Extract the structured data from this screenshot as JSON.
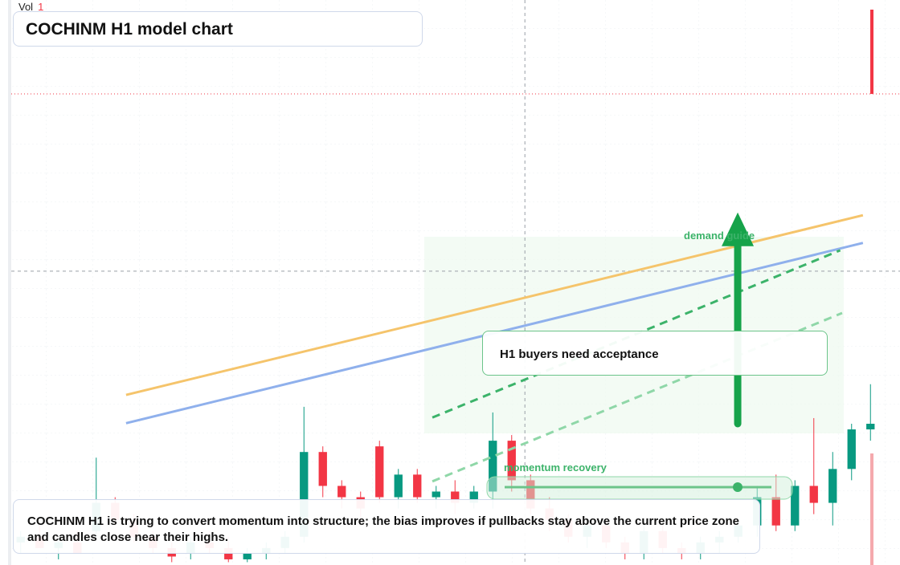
{
  "chart_data": {
    "type": "candlestick",
    "title": "COCHINM H1 model chart",
    "volume_label": "Vol",
    "volume_value": 1,
    "caption": "COCHINM H1 is trying to convert momentum into structure; the bias improves if pullbacks stay above the current price zone and candles close near their highs.",
    "annotation": "H1 buyers need acceptance",
    "up_color": "#089981",
    "down_color": "#f23645",
    "xlim": [
      -0.5,
      45.5
    ],
    "ylim": [
      0,
      100
    ],
    "candles": [
      {
        "o": 4,
        "h": 6,
        "l": 2,
        "c": 5
      },
      {
        "o": 5,
        "h": 7,
        "l": 3,
        "c": 3
      },
      {
        "o": 3,
        "h": 5,
        "l": 1,
        "c": 4
      },
      {
        "o": 4,
        "h": 6,
        "l": 2,
        "c": 2
      },
      {
        "o": 6,
        "h": 19,
        "l": 5,
        "c": 11
      },
      {
        "o": 11,
        "h": 12,
        "l": 7,
        "c": 8
      },
      {
        "o": 8,
        "h": 9,
        "l": 4,
        "c": 5
      },
      {
        "o": 5,
        "h": 6,
        "l": 2,
        "c": 3
      },
      {
        "o": 3,
        "h": 4,
        "l": 0.5,
        "c": 1.5
      },
      {
        "o": 2,
        "h": 5,
        "l": 1,
        "c": 4
      },
      {
        "o": 4,
        "h": 6,
        "l": 2,
        "c": 3
      },
      {
        "o": 3,
        "h": 5,
        "l": 0.5,
        "c": 1
      },
      {
        "o": 1,
        "h": 3,
        "l": 0.5,
        "c": 2
      },
      {
        "o": 2,
        "h": 4,
        "l": 1,
        "c": 3
      },
      {
        "o": 3,
        "h": 6,
        "l": 2,
        "c": 5
      },
      {
        "o": 5,
        "h": 28,
        "l": 4,
        "c": 20
      },
      {
        "o": 20,
        "h": 21,
        "l": 12,
        "c": 14
      },
      {
        "o": 14,
        "h": 15,
        "l": 10,
        "c": 12
      },
      {
        "o": 12,
        "h": 13,
        "l": 8,
        "c": 10
      },
      {
        "o": 21,
        "h": 22,
        "l": 11,
        "c": 12
      },
      {
        "o": 12,
        "h": 17,
        "l": 10,
        "c": 16
      },
      {
        "o": 16,
        "h": 17,
        "l": 11,
        "c": 12
      },
      {
        "o": 12,
        "h": 14,
        "l": 10,
        "c": 13
      },
      {
        "o": 13,
        "h": 15,
        "l": 9,
        "c": 11
      },
      {
        "o": 11,
        "h": 14,
        "l": 10,
        "c": 13
      },
      {
        "o": 13,
        "h": 27,
        "l": 10,
        "c": 22
      },
      {
        "o": 22,
        "h": 23,
        "l": 13,
        "c": 15
      },
      {
        "o": 15,
        "h": 16,
        "l": 9,
        "c": 10
      },
      {
        "o": 10,
        "h": 12,
        "l": 6,
        "c": 8
      },
      {
        "o": 8,
        "h": 9,
        "l": 4,
        "c": 5
      },
      {
        "o": 5,
        "h": 8,
        "l": 3,
        "c": 7
      },
      {
        "o": 7,
        "h": 8,
        "l": 3,
        "c": 4
      },
      {
        "o": 4,
        "h": 5,
        "l": 1,
        "c": 2
      },
      {
        "o": 2,
        "h": 7,
        "l": 1,
        "c": 6
      },
      {
        "o": 6,
        "h": 7,
        "l": 2,
        "c": 3
      },
      {
        "o": 3,
        "h": 4,
        "l": 1,
        "c": 2
      },
      {
        "o": 2,
        "h": 5,
        "l": 1,
        "c": 4
      },
      {
        "o": 4,
        "h": 6,
        "l": 2,
        "c": 5
      },
      {
        "o": 5,
        "h": 8,
        "l": 4,
        "c": 7
      },
      {
        "o": 7,
        "h": 14,
        "l": 5,
        "c": 12
      },
      {
        "o": 12,
        "h": 16,
        "l": 6,
        "c": 7
      },
      {
        "o": 7,
        "h": 15,
        "l": 6,
        "c": 14
      },
      {
        "o": 14,
        "h": 26,
        "l": 9,
        "c": 11
      },
      {
        "o": 11,
        "h": 20,
        "l": 7,
        "c": 17
      },
      {
        "o": 17,
        "h": 25,
        "l": 15,
        "c": 24
      },
      {
        "o": 24,
        "h": 32,
        "l": 22,
        "c": 25
      }
    ],
    "lines": [
      {
        "color": "#f5c46b",
        "dash": false,
        "x": [
          5.58,
          44.6
        ],
        "values": [
          30.1,
          61.9
        ]
      },
      {
        "color": "#8fb0ec",
        "dash": false,
        "x": [
          5.58,
          44.6
        ],
        "values": [
          25.1,
          57.0
        ]
      },
      {
        "name": "demand guide",
        "color": "#3cb36a",
        "dash": true,
        "x": [
          21.8,
          43.4
        ],
        "values": [
          26.1,
          55.7
        ]
      },
      {
        "name": "momentum recovery",
        "color": "#8fd7a8",
        "dash": true,
        "x": [
          21.8,
          43.5
        ],
        "values": [
          14.8,
          44.6
        ]
      }
    ],
    "arrow": {
      "color": "#16a34a",
      "x": 37.97,
      "from": 25.0,
      "to": 62.4
    },
    "crosshair": {
      "x": 26.7,
      "y": 52.0
    }
  }
}
